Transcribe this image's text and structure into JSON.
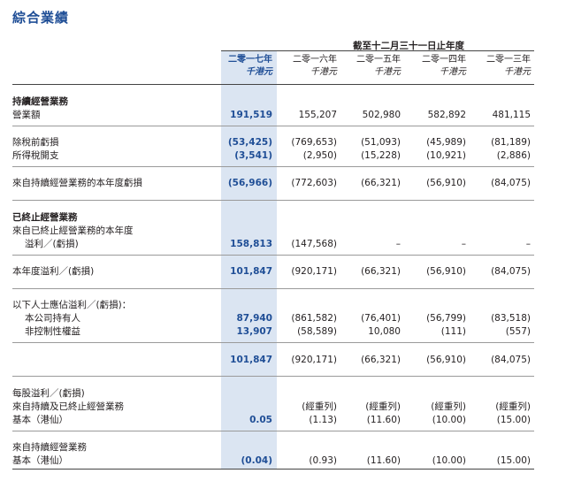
{
  "title": "綜合業績",
  "header": {
    "period_heading": "截至十二月三十一日止年度",
    "years": [
      "二零一七年",
      "二零一六年",
      "二零一五年",
      "二零一四年",
      "二零一三年"
    ],
    "unit": "千港元"
  },
  "rows": [
    {
      "label": "持續經營業務",
      "bold": true,
      "values": [
        "",
        "",
        "",
        "",
        ""
      ]
    },
    {
      "label": "營業額",
      "values": [
        "191,519",
        "155,207",
        "502,980",
        "582,892",
        "481,115"
      ]
    },
    {
      "label": "除稅前虧損",
      "values": [
        "(53,425)",
        "(769,653)",
        "(51,093)",
        "(45,989)",
        "(81,189)"
      ]
    },
    {
      "label": "所得稅開支",
      "values": [
        "(3,541)",
        "(2,950)",
        "(15,228)",
        "(10,921)",
        "(2,886)"
      ]
    },
    {
      "label": "來自持續經營業務的本年度虧損",
      "values": [
        "(56,966)",
        "(772,603)",
        "(66,321)",
        "(56,910)",
        "(84,075)"
      ]
    },
    {
      "label": "已終止經營業務",
      "bold": true,
      "values": [
        "",
        "",
        "",
        "",
        ""
      ]
    },
    {
      "label": "來自已終止經營業務的本年度",
      "values": [
        "",
        "",
        "",
        "",
        ""
      ]
    },
    {
      "label": "溢利／(虧損)",
      "indent": true,
      "values": [
        "158,813",
        "(147,568)",
        "–",
        "–",
        "–"
      ]
    },
    {
      "label": "本年度溢利／(虧損)",
      "values": [
        "101,847",
        "(920,171)",
        "(66,321)",
        "(56,910)",
        "(84,075)"
      ]
    },
    {
      "label": "以下人士應佔溢利／(虧損)：",
      "values": [
        "",
        "",
        "",
        "",
        ""
      ]
    },
    {
      "label": "本公司持有人",
      "indent": true,
      "values": [
        "87,940",
        "(861,582)",
        "(76,401)",
        "(56,799)",
        "(83,518)"
      ]
    },
    {
      "label": "非控制性權益",
      "indent": true,
      "values": [
        "13,907",
        "(58,589)",
        "10,080",
        "(111)",
        "(557)"
      ]
    },
    {
      "label": "",
      "values": [
        "101,847",
        "(920,171)",
        "(66,321)",
        "(56,910)",
        "(84,075)"
      ]
    },
    {
      "label": "每股溢利／(虧損)",
      "values": [
        "",
        "",
        "",
        "",
        ""
      ]
    },
    {
      "label": "來自持續及已終止經營業務",
      "values": [
        "",
        "(經重列)",
        "(經重列)",
        "(經重列)",
        "(經重列)"
      ]
    },
    {
      "label": "基本（港仙）",
      "values": [
        "0.05",
        "(1.13)",
        "(11.60)",
        "(10.00)",
        "(15.00)"
      ]
    },
    {
      "label": "來自持續經營業務",
      "values": [
        "",
        "",
        "",
        "",
        ""
      ]
    },
    {
      "label": "基本（港仙）",
      "values": [
        "(0.04)",
        "(0.93)",
        "(11.60)",
        "(10.00)",
        "(15.00)"
      ]
    }
  ]
}
